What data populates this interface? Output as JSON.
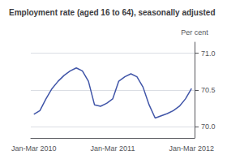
{
  "chart_data": {
    "type": "line",
    "title": "Employment rate (aged 16 to 64), seasonally adjusted",
    "ylabel": "Per cent",
    "categories": [
      "Jan-Mar 2010",
      null,
      null,
      null,
      null,
      null,
      null,
      null,
      null,
      null,
      null,
      null,
      null,
      "Jan-Mar 2011",
      null,
      null,
      null,
      null,
      null,
      null,
      null,
      null,
      null,
      null,
      null,
      null,
      "Jan-Mar 2012"
    ],
    "values": [
      70.17,
      70.22,
      70.38,
      70.52,
      70.62,
      70.7,
      70.76,
      70.8,
      70.76,
      70.62,
      70.3,
      70.28,
      70.32,
      70.38,
      70.62,
      70.68,
      70.72,
      70.68,
      70.54,
      70.3,
      70.12,
      70.15,
      70.18,
      70.22,
      70.28,
      70.38,
      70.52
    ],
    "color": "#4055a8",
    "ylim": [
      69.85,
      71.15
    ],
    "yticks": [
      {
        "value": 70.0,
        "label": "70.0"
      },
      {
        "value": 70.5,
        "label": "70.5"
      },
      {
        "value": 71.0,
        "label": "71.0"
      }
    ],
    "grid": true
  }
}
